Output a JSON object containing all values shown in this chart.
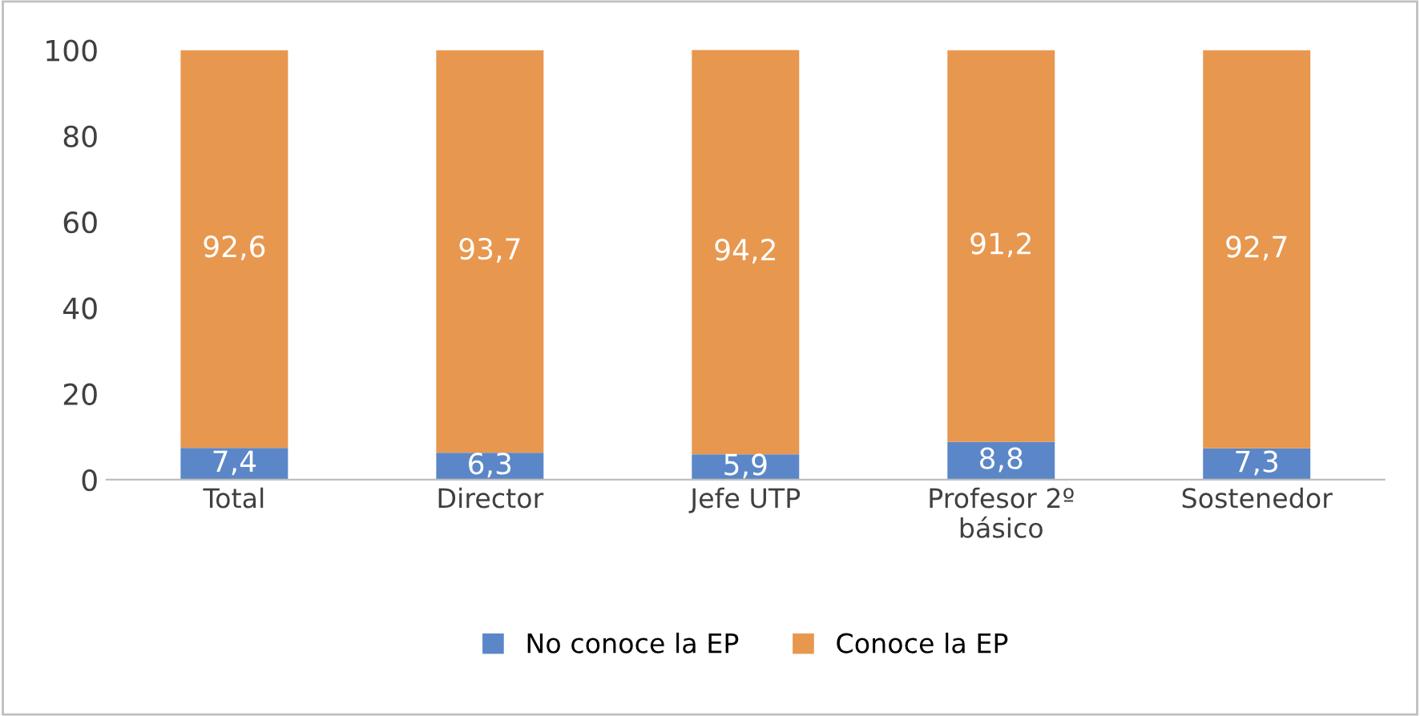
{
  "chart_data": {
    "type": "bar",
    "stacked": true,
    "categories": [
      "Total",
      "Director",
      "Jefe UTP",
      "Profesor 2º\nbásico",
      "Sostenedor"
    ],
    "series": [
      {
        "name": "No conoce la EP",
        "color": "#5b87c8",
        "values": [
          7.4,
          6.3,
          5.9,
          8.8,
          7.3
        ],
        "value_labels": [
          "7,4",
          "6,3",
          "5,9",
          "8,8",
          "7,3"
        ]
      },
      {
        "name": "Conoce la EP",
        "color": "#e8974f",
        "values": [
          92.6,
          93.7,
          94.2,
          91.2,
          92.7
        ],
        "value_labels": [
          "92,6",
          "93,7",
          "94,2",
          "91,2",
          "92,7"
        ]
      }
    ],
    "ylim": [
      0,
      100
    ],
    "yticks": [
      0,
      20,
      40,
      60,
      80,
      100
    ],
    "grid": false,
    "legend": "bottom"
  }
}
